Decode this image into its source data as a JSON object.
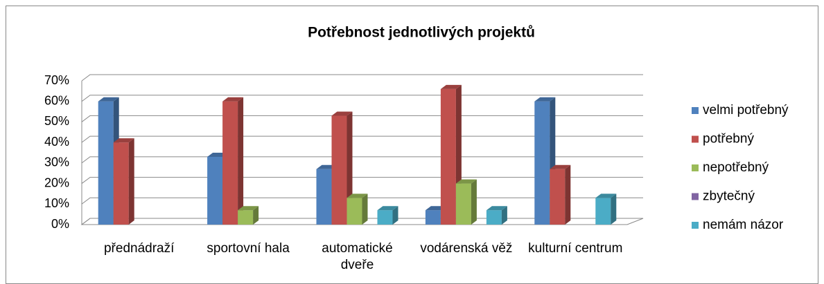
{
  "chart_data": {
    "type": "bar3d",
    "title": "Potřebnost jednotlivých projektů",
    "categories": [
      "přednádraží",
      "sportovní hala",
      "automatické dveře",
      "vodárenská věž",
      "kulturní centrum"
    ],
    "series": [
      {
        "name": "velmi potřebný",
        "color": "#4f81bd",
        "values": [
          60,
          33,
          27,
          7,
          60
        ]
      },
      {
        "name": "potřebný",
        "color": "#c0504d",
        "values": [
          40,
          60,
          53,
          66,
          27
        ]
      },
      {
        "name": "nepotřebný",
        "color": "#9bbb59",
        "values": [
          0,
          7,
          13,
          20,
          0
        ]
      },
      {
        "name": "zbytečný",
        "color": "#8064a2",
        "values": [
          0,
          0,
          0,
          0,
          0
        ]
      },
      {
        "name": "nemám názor",
        "color": "#4bacc6",
        "values": [
          0,
          0,
          7,
          7,
          13
        ]
      }
    ],
    "ylim": [
      0,
      70
    ],
    "yticks": [
      {
        "value": 0,
        "label": "0%"
      },
      {
        "value": 10,
        "label": "10%"
      },
      {
        "value": 20,
        "label": "20%"
      },
      {
        "value": 30,
        "label": "30%"
      },
      {
        "value": 40,
        "label": "40%"
      },
      {
        "value": 50,
        "label": "50%"
      },
      {
        "value": 60,
        "label": "60%"
      },
      {
        "value": 70,
        "label": "70%"
      }
    ],
    "grid": true,
    "legend": "right"
  }
}
